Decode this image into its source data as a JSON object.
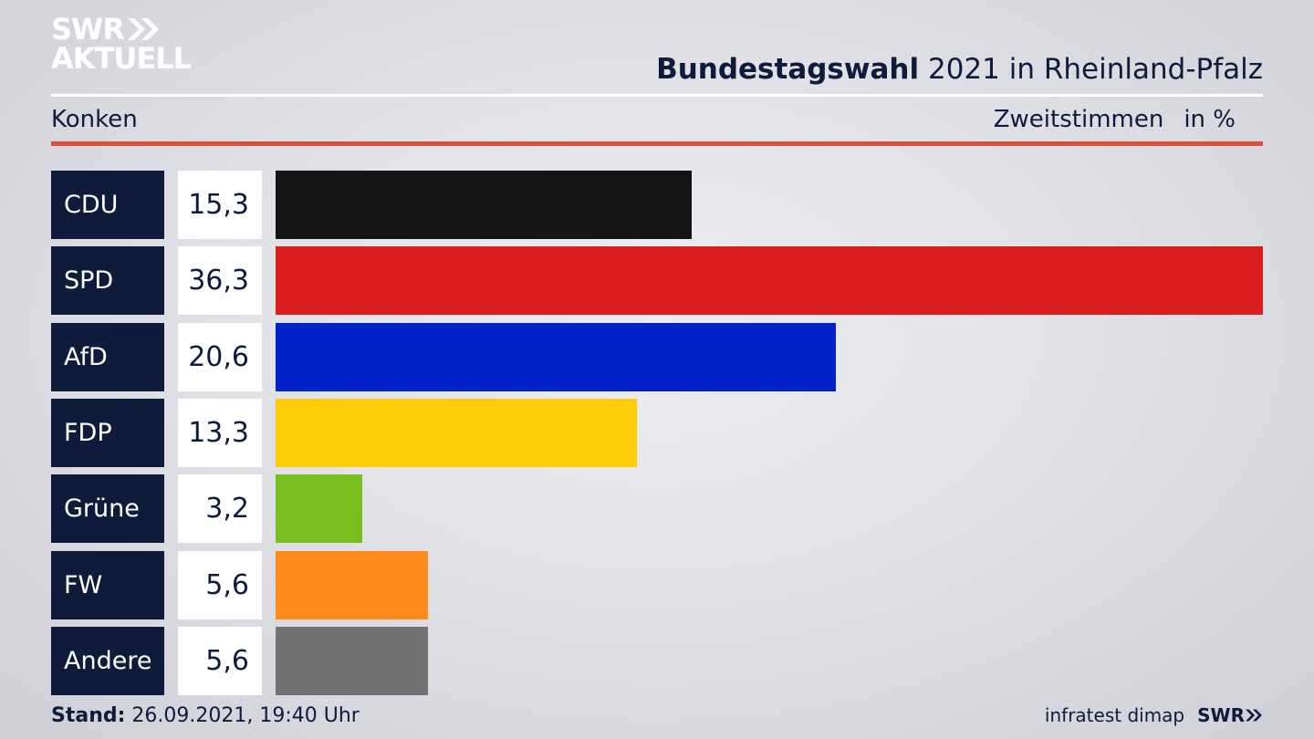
{
  "logo": {
    "line1": "SWR",
    "line2": "AKTUELL"
  },
  "header": {
    "title_bold": "Bundestagswahl",
    "title_rest": "2021 in Rheinland-Pfalz",
    "region": "Konken",
    "measure": "Zweitstimmen",
    "unit": "in %"
  },
  "chart_data": {
    "type": "bar",
    "orientation": "horizontal",
    "title": "Bundestagswahl 2021 in Rheinland-Pfalz",
    "subtitle": "Konken",
    "xlabel": "Zweitstimmen in %",
    "categories": [
      "CDU",
      "SPD",
      "AfD",
      "FDP",
      "Grüne",
      "FW",
      "Andere"
    ],
    "values": [
      15.3,
      36.3,
      20.6,
      13.3,
      3.2,
      5.6,
      5.6
    ],
    "value_labels": [
      "15,3",
      "36,3",
      "20,6",
      "13,3",
      "3,2",
      "5,6",
      "5,6"
    ],
    "colors": [
      "#141414",
      "#d81e1e",
      "#0022c8",
      "#ffcc0a",
      "#78be1e",
      "#ff8c19",
      "#737373"
    ],
    "xlim": [
      0,
      36.3
    ],
    "grid": false,
    "legend": "none"
  },
  "footer": {
    "stand_label": "Stand:",
    "stand_value": "26.09.2021, 19:40 Uhr",
    "source": "infratest dimap",
    "brand": "SWR"
  }
}
